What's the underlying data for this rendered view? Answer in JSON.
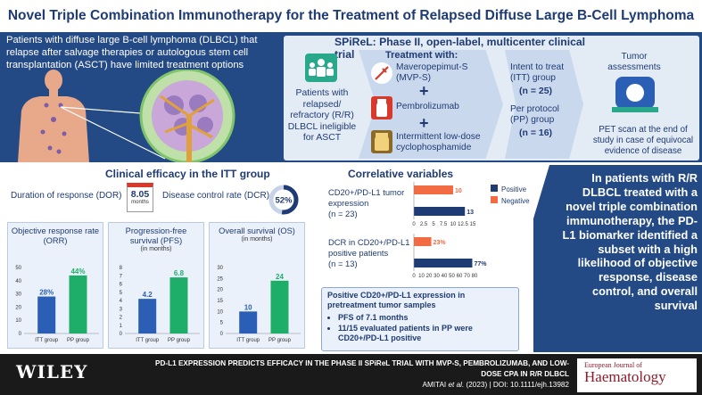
{
  "title": "Novel Triple Combination Immunotherapy for the Treatment of Relapsed Diffuse Large B-Cell Lymphoma",
  "intro": "Patients with diffuse large B-cell lymphoma (DLBCL) that relapse after salvage therapies or autologous stem cell transplantation (ASCT) have limited treatment options",
  "trial": {
    "title": "SPiReL: Phase II, open-label, multicenter clinical trial",
    "patients": "Patients with relapsed/ refractory (R/R) DLBCL ineligible for ASCT",
    "treatment_heading": "Treatment with:",
    "drug1": "Maveropepimut-S (MVP-S)",
    "drug2": "Pembrolizumab",
    "drug3": "Intermittent low-dose cyclophosphamide",
    "plus": "+",
    "itt_label": "Intent to treat (ITT) group",
    "itt_n": "(n = 25)",
    "pp_label": "Per protocol (PP) group",
    "pp_n": "(n = 16)",
    "tumor_heading": "Tumor assessments",
    "tumor_text": "PET scan at the end of study in case of equivocal evidence of disease"
  },
  "efficacy": {
    "title": "Clinical efficacy in the ITT group",
    "dor_label": "Duration of response (DOR)",
    "dor_value": "8.05",
    "dor_unit": "months",
    "dcr_label": "Disease control rate (DCR)",
    "dcr_value": "52%",
    "dcr_fraction": 0.52,
    "charts": [
      {
        "title": "Objective response rate (ORR)",
        "subtitle": "",
        "ticks": [
          "0",
          "10",
          "20",
          "30",
          "40",
          "50"
        ],
        "ymax": 50,
        "categories": [
          "ITT group",
          "PP group"
        ],
        "values": [
          28,
          44
        ],
        "labels": [
          "28%",
          "44%"
        ]
      },
      {
        "title": "Progression-free survival (PFS)",
        "subtitle": "(in months)",
        "ticks": [
          "0",
          "1",
          "2",
          "3",
          "4",
          "5",
          "6",
          "7",
          "8"
        ],
        "ymax": 8,
        "categories": [
          "ITT group",
          "PP group"
        ],
        "values": [
          4.2,
          6.8
        ],
        "labels": [
          "4.2",
          "6.8"
        ]
      },
      {
        "title": "Overall survival (OS)",
        "subtitle": "(in months)",
        "ticks": [
          "0",
          "5",
          "10",
          "15",
          "20",
          "25",
          "30"
        ],
        "ymax": 30,
        "categories": [
          "ITT group",
          "PP group"
        ],
        "values": [
          10,
          24
        ],
        "labels": [
          "10",
          "24"
        ]
      }
    ],
    "colors": {
      "itt": "#2b5fb5",
      "pp": "#1fae6a"
    }
  },
  "correlative": {
    "title": "Correlative variables",
    "row1_label": "CD20+/PD-L1 tumor expression",
    "row1_n": "(n = 23)",
    "row1_values": [
      10,
      13
    ],
    "row1_ticks": [
      "0",
      "2.5",
      "5",
      "7.5",
      "10",
      "12.5",
      "15"
    ],
    "row2_label": "DCR in CD20+/PD-L1 positive patients",
    "row2_n": "(n = 13)",
    "row2_values": [
      "23%",
      "77%"
    ],
    "row2_nums": [
      23,
      77
    ],
    "row2_ticks": [
      "0",
      "10",
      "20",
      "30",
      "40",
      "50",
      "60",
      "70",
      "80"
    ],
    "legend_positive": "Positive",
    "legend_negative": "Negative",
    "colors": {
      "positive": "#1f3b73",
      "negative": "#f26b43"
    },
    "note_title": "Positive CD20+/PD-L1 expression in pretreatment tumor samples",
    "note_items": [
      "PFS of 7.1 months",
      "11/15 evaluated patients in PP were CD20+/PD-L1 positive"
    ]
  },
  "conclusion": "In patients with R/R DLBCL treated with a novel triple combination immunotherapy, the PD-L1 biomarker identified a subset with a high likelihood of objective response, disease control, and overall survival",
  "footer": {
    "publisher": "WILEY",
    "line1": "PD-L1 EXPRESSION PREDICTS EFFICACY IN THE PHASE II SPiReL TRIAL WITH MVP-S, PEMBROLIZUMAB, AND LOW-DOSE CPA IN R/R DLBCL",
    "cite_a": "AMITAI ",
    "cite_b": "et al.",
    "cite_c": " (2023) | DOI: 10.1111/ejh.13982",
    "journal_small": "European Journal of",
    "journal_big": "Haematology"
  }
}
